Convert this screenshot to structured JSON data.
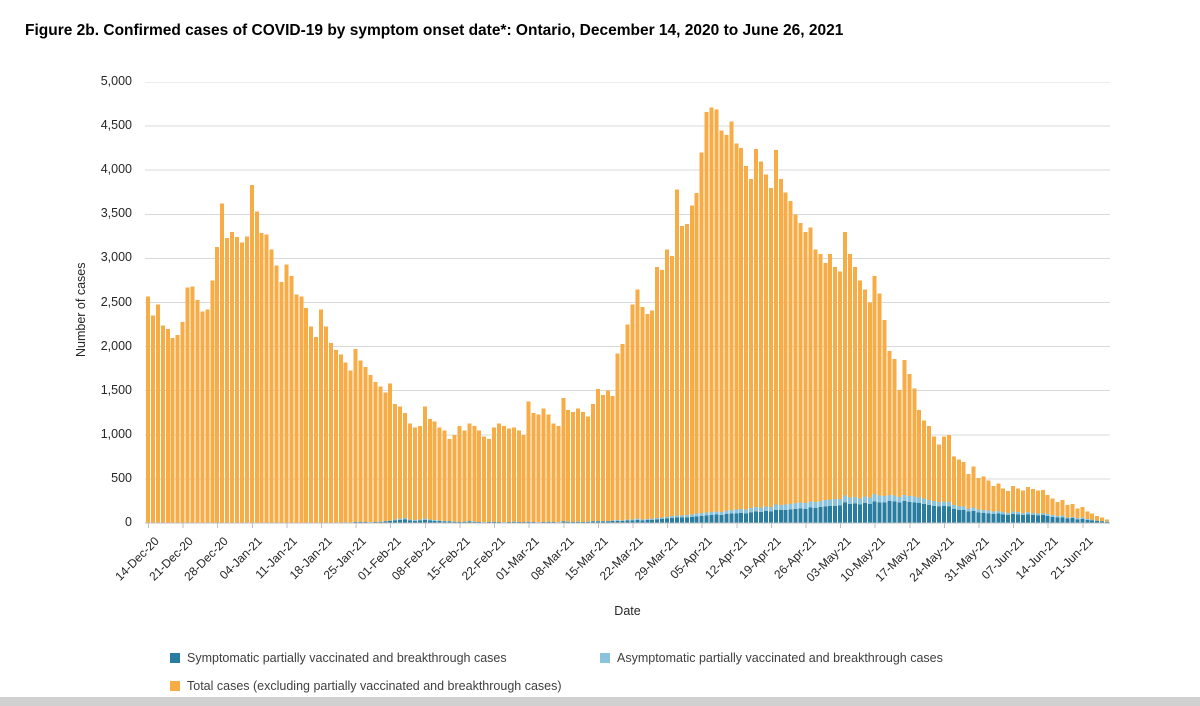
{
  "page": {
    "title": "Figure 2b. Confirmed cases of COVID-19 by symptom onset date*: Ontario, December 14, 2020 to June 26, 2021"
  },
  "chart": {
    "y_axis_title": "Number of cases",
    "x_axis_title": "Date",
    "y_tick_labels": [
      "0",
      "500",
      "1,000",
      "1,500",
      "2,000",
      "2,500",
      "3,000",
      "3,500",
      "4,000",
      "4,500",
      "5,000"
    ],
    "x_tick_labels": [
      "14-Dec-20",
      "21-Dec-20",
      "28-Dec-20",
      "04-Jan-21",
      "11-Jan-21",
      "18-Jan-21",
      "25-Jan-21",
      "01-Feb-21",
      "08-Feb-21",
      "15-Feb-21",
      "22-Feb-21",
      "01-Mar-21",
      "08-Mar-21",
      "15-Mar-21",
      "22-Mar-21",
      "29-Mar-21",
      "05-Apr-21",
      "12-Apr-21",
      "19-Apr-21",
      "26-Apr-21",
      "03-May-21",
      "10-May-21",
      "17-May-21",
      "24-May-21",
      "31-May-21",
      "07-Jun-21",
      "14-Jun-21",
      "21-Jun-21"
    ],
    "legend": [
      {
        "label": "Symptomatic partially vaccinated and breakthrough cases",
        "color": "#287DA0"
      },
      {
        "label": "Asymptomatic partially vaccinated and breakthrough cases",
        "color": "#8CC3DC"
      },
      {
        "label": "Total cases (excluding partially vaccinated and breakthrough cases)",
        "color": "#F8AC45"
      }
    ],
    "colors": {
      "gridline": "#d9d9d9",
      "axis": "#bfbfbf"
    }
  },
  "chart_data": {
    "type": "bar",
    "stacked": true,
    "title": "Figure 2b. Confirmed cases of COVID-19 by symptom onset date*: Ontario, December 14, 2020 to June 26, 2021",
    "xlabel": "Date",
    "ylabel": "Number of cases",
    "ylim": [
      0,
      5000
    ],
    "ytick_step": 500,
    "grid": true,
    "legend_position": "bottom",
    "x_frequency": "daily",
    "x_start": "2020-12-14",
    "x_end": "2021-06-26",
    "n_days": 195,
    "series": [
      {
        "name": "Symptomatic partially vaccinated and breakthrough cases",
        "color": "#287DA0",
        "values": [
          0,
          0,
          0,
          0,
          0,
          0,
          0,
          0,
          0,
          0,
          0,
          0,
          0,
          0,
          0,
          0,
          0,
          0,
          0,
          0,
          0,
          0,
          0,
          0,
          0,
          0,
          0,
          0,
          0,
          0,
          0,
          0,
          0,
          0,
          0,
          0,
          0,
          0,
          5,
          5,
          8,
          6,
          10,
          12,
          10,
          8,
          10,
          12,
          15,
          20,
          30,
          35,
          40,
          30,
          25,
          30,
          35,
          30,
          25,
          20,
          18,
          15,
          12,
          10,
          12,
          15,
          12,
          10,
          8,
          10,
          12,
          10,
          8,
          10,
          12,
          10,
          10,
          12,
          10,
          8,
          10,
          12,
          10,
          8,
          15,
          12,
          10,
          12,
          10,
          12,
          15,
          18,
          15,
          18,
          20,
          25,
          22,
          28,
          30,
          35,
          30,
          32,
          35,
          40,
          45,
          50,
          55,
          60,
          60,
          65,
          70,
          75,
          80,
          85,
          90,
          95,
          90,
          100,
          105,
          110,
          115,
          110,
          120,
          130,
          125,
          135,
          130,
          150,
          145,
          150,
          155,
          160,
          165,
          160,
          175,
          170,
          180,
          185,
          190,
          195,
          200,
          230,
          215,
          220,
          210,
          225,
          215,
          245,
          235,
          230,
          250,
          245,
          230,
          250,
          240,
          235,
          225,
          215,
          205,
          195,
          185,
          190,
          185,
          160,
          150,
          145,
          130,
          135,
          120,
          115,
          110,
          100,
          105,
          95,
          90,
          100,
          95,
          90,
          95,
          88,
          85,
          90,
          80,
          70,
          60,
          65,
          50,
          55,
          42,
          48,
          34,
          30,
          22,
          18,
          12
        ]
      },
      {
        "name": "Asymptomatic partially vaccinated and breakthrough cases",
        "color": "#8CC3DC",
        "values": [
          0,
          0,
          0,
          0,
          0,
          0,
          0,
          0,
          0,
          0,
          0,
          0,
          0,
          0,
          0,
          0,
          0,
          0,
          0,
          0,
          0,
          0,
          0,
          0,
          0,
          0,
          0,
          0,
          0,
          0,
          0,
          0,
          0,
          0,
          0,
          0,
          0,
          0,
          2,
          2,
          3,
          2,
          4,
          5,
          4,
          3,
          4,
          5,
          6,
          8,
          12,
          15,
          18,
          12,
          10,
          12,
          15,
          12,
          10,
          8,
          7,
          6,
          5,
          4,
          5,
          6,
          5,
          4,
          3,
          4,
          5,
          4,
          3,
          4,
          5,
          4,
          4,
          5,
          4,
          3,
          4,
          5,
          4,
          3,
          6,
          5,
          4,
          5,
          4,
          5,
          6,
          7,
          6,
          7,
          8,
          10,
          9,
          11,
          12,
          14,
          12,
          13,
          14,
          16,
          18,
          20,
          22,
          24,
          24,
          26,
          28,
          30,
          32,
          34,
          36,
          38,
          36,
          40,
          42,
          44,
          46,
          44,
          48,
          52,
          50,
          54,
          52,
          60,
          58,
          60,
          62,
          64,
          66,
          64,
          70,
          68,
          72,
          74,
          76,
          78,
          72,
          80,
          75,
          73,
          70,
          75,
          72,
          82,
          78,
          75,
          70,
          68,
          65,
          70,
          67,
          66,
          63,
          60,
          57,
          55,
          52,
          53,
          52,
          45,
          42,
          40,
          36,
          38,
          34,
          32,
          31,
          28,
          29,
          27,
          25,
          28,
          27,
          25,
          27,
          25,
          24,
          25,
          22,
          20,
          17,
          18,
          14,
          15,
          12,
          13,
          9,
          8,
          6,
          5,
          3
        ]
      },
      {
        "name": "Total cases (excluding partially vaccinated and breakthrough cases)",
        "color": "#F8AC45",
        "values": [
          2570,
          2350,
          2480,
          2240,
          2200,
          2100,
          2130,
          2280,
          2670,
          2680,
          2530,
          2400,
          2420,
          2750,
          3130,
          3620,
          3230,
          3300,
          3240,
          3180,
          3250,
          3830,
          3530,
          3290,
          3270,
          3100,
          2920,
          2730,
          2930,
          2800,
          2590,
          2570,
          2440,
          2230,
          2110,
          2420,
          2230,
          2040,
          1953,
          1903,
          1809,
          1722,
          1956,
          1823,
          1756,
          1669,
          1586,
          1533,
          1459,
          1552,
          1308,
          1270,
          1192,
          1088,
          1045,
          1058,
          1270,
          1138,
          1115,
          1052,
          1025,
          929,
          983,
          1086,
          1033,
          1109,
          1083,
          1036,
          969,
          936,
          1063,
          1116,
          1089,
          1056,
          1063,
          1036,
          986,
          1363,
          1236,
          1219,
          1286,
          1213,
          1116,
          1089,
          1399,
          1263,
          1246,
          1283,
          1246,
          1193,
          1329,
          1495,
          1429,
          1475,
          1412,
          1885,
          1999,
          2211,
          2438,
          2601,
          2408,
          2325,
          2361,
          2844,
          2807,
          3030,
          2953,
          3696,
          3286,
          3299,
          3502,
          3635,
          4088,
          4541,
          4584,
          4557,
          4324,
          4260,
          4403,
          4146,
          4089,
          3896,
          3732,
          4058,
          3925,
          3761,
          3618,
          4020,
          3697,
          3540,
          3433,
          3276,
          3169,
          3076,
          3105,
          2862,
          2798,
          2691,
          2784,
          2627,
          2578,
          2990,
          2760,
          2607,
          2470,
          2350,
          2213,
          2473,
          2287,
          1995,
          1630,
          1547,
          1215,
          1530,
          1383,
          1224,
          992,
          885,
          838,
          730,
          653,
          737,
          763,
          550,
          528,
          505,
          390,
          467,
          357,
          383,
          339,
          289,
          316,
          268,
          246,
          292,
          268,
          255,
          288,
          272,
          261,
          257,
          214,
          188,
          163,
          176,
          139,
          144,
          111,
          123,
          85,
          71,
          51,
          41,
          26
        ]
      }
    ]
  }
}
